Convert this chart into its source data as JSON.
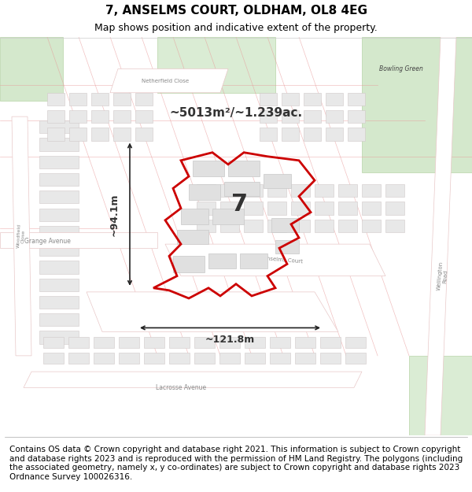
{
  "title": "7, ANSELMS COURT, OLDHAM, OL8 4EG",
  "subtitle": "Map shows position and indicative extent of the property.",
  "footer_text": "Contains OS data © Crown copyright and database right 2021. This information is subject to Crown copyright and database rights 2023 and is reproduced with the permission of HM Land Registry. The polygons (including the associated geometry, namely x, y co-ordinates) are subject to Crown copyright and database rights 2023 Ordnance Survey 100026316.",
  "area_label": "~5013m²/~1.239ac.",
  "number_label": "7",
  "dim_horizontal": "~121.8m",
  "dim_vertical": "~94.1m",
  "map_bg": "#f5f5f5",
  "road_color": "#e8e8e8",
  "road_stroke": "#d0d0d0",
  "plot_fill": "none",
  "plot_edge": "#cc0000",
  "building_fill": "#e0e0e0",
  "building_edge": "#c0c0c0",
  "green_fill": "#d4e8cc",
  "green_edge": "#b8d4a8",
  "arrow_color": "#222222",
  "title_fontsize": 11,
  "subtitle_fontsize": 9,
  "footer_fontsize": 7.5
}
